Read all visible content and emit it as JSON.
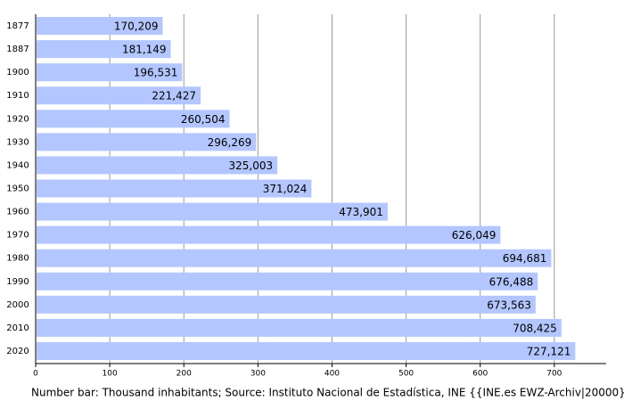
{
  "chart_data": {
    "type": "bar",
    "orientation": "horizontal",
    "categories": [
      "1877",
      "1887",
      "1900",
      "1910",
      "1920",
      "1930",
      "1940",
      "1950",
      "1960",
      "1970",
      "1980",
      "1990",
      "2000",
      "2010",
      "2020"
    ],
    "values": [
      170.209,
      181.149,
      196.531,
      221.427,
      260.504,
      296.269,
      325.003,
      371.024,
      473.901,
      626.049,
      694.681,
      676.488,
      673.563,
      708.425,
      727.121
    ],
    "value_labels": [
      "170,209",
      "181,149",
      "196,531",
      "221,427",
      "260,504",
      "296,269",
      "325,003",
      "371,024",
      "473,901",
      "626,049",
      "694,681",
      "676,488",
      "673,563",
      "708,425",
      "727,121"
    ],
    "color": "#b3c6ff",
    "xlim": [
      0,
      770
    ],
    "xticks": [
      0,
      100,
      200,
      300,
      400,
      500,
      600,
      700
    ],
    "grid": true,
    "source": "Number bar: Thousand inhabitants; Source: Instituto Nacional de Estadística, INE {{INE.es EWZ-Archiv|20000}}"
  }
}
